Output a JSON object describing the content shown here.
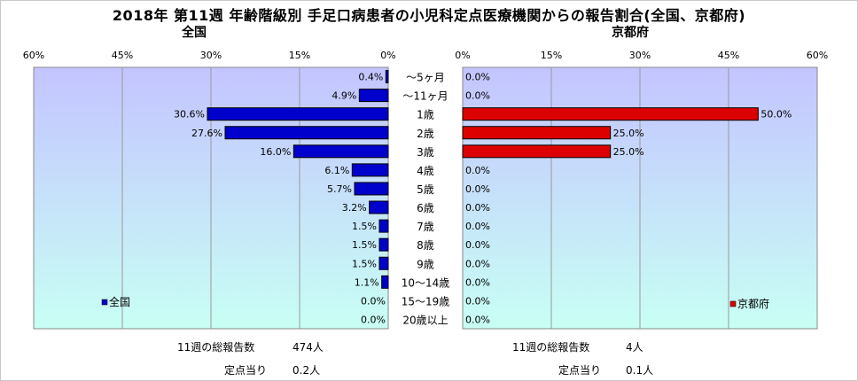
{
  "title": "2018年 第11週 年齢階級別 手足口病患者の小児科定点医療機関からの報告割合(全国、京都府)",
  "colors": {
    "zenkoku_bar": "#0000cc",
    "kyoto_bar": "#dd0000",
    "plot_bg_top": "#c4c4ff",
    "plot_bg_bottom": "#c8fff4",
    "grid": "#999999"
  },
  "chart_data": [
    {
      "type": "bar",
      "orientation": "horizontal",
      "direction": "right-to-left",
      "title": "全国",
      "categories": [
        "～5ヶ月",
        "～11ヶ月",
        "1歳",
        "2歳",
        "3歳",
        "4歳",
        "5歳",
        "6歳",
        "7歳",
        "8歳",
        "9歳",
        "10～14歳",
        "15～19歳",
        "20歳以上"
      ],
      "series": [
        {
          "name": "全国",
          "values": [
            0.4,
            4.9,
            30.6,
            27.6,
            16.0,
            6.1,
            5.7,
            3.2,
            1.5,
            1.5,
            1.5,
            1.1,
            0.0,
            0.0
          ],
          "labels": [
            "0.4%",
            "4.9%",
            "30.6%",
            "27.6%",
            "16.0%",
            "6.1%",
            "5.7%",
            "3.2%",
            "1.5%",
            "1.5%",
            "1.5%",
            "1.1%",
            "0.0%",
            "0.0%"
          ]
        }
      ],
      "xlim": [
        0,
        60
      ],
      "xticks": [
        60,
        45,
        30,
        15,
        0
      ],
      "xtick_labels": [
        "60%",
        "45%",
        "30%",
        "15%",
        "0%"
      ],
      "grid": true,
      "legend_position": "bottom-left"
    },
    {
      "type": "bar",
      "orientation": "horizontal",
      "direction": "left-to-right",
      "title": "京都府",
      "categories": [
        "～5ヶ月",
        "～11ヶ月",
        "1歳",
        "2歳",
        "3歳",
        "4歳",
        "5歳",
        "6歳",
        "7歳",
        "8歳",
        "9歳",
        "10～14歳",
        "15～19歳",
        "20歳以上"
      ],
      "series": [
        {
          "name": "京都府",
          "values": [
            0.0,
            0.0,
            50.0,
            25.0,
            25.0,
            0.0,
            0.0,
            0.0,
            0.0,
            0.0,
            0.0,
            0.0,
            0.0,
            0.0
          ],
          "labels": [
            "0.0%",
            "0.0%",
            "50.0%",
            "25.0%",
            "25.0%",
            "0.0%",
            "0.0%",
            "0.0%",
            "0.0%",
            "0.0%",
            "0.0%",
            "0.0%",
            "0.0%",
            "0.0%"
          ]
        }
      ],
      "xlim": [
        0,
        60
      ],
      "xticks": [
        0,
        15,
        30,
        45,
        60
      ],
      "xtick_labels": [
        "0%",
        "15%",
        "30%",
        "45%",
        "60%"
      ],
      "grid": true,
      "legend_position": "bottom-right"
    }
  ],
  "footer": {
    "zenkoku": {
      "total_label": "11週の総報告数",
      "total_value": "474人",
      "per_label": "定点当り",
      "per_value": "0.2人"
    },
    "kyoto": {
      "total_label": "11週の総報告数",
      "total_value": "4人",
      "per_label": "定点当り",
      "per_value": "0.1人"
    }
  }
}
